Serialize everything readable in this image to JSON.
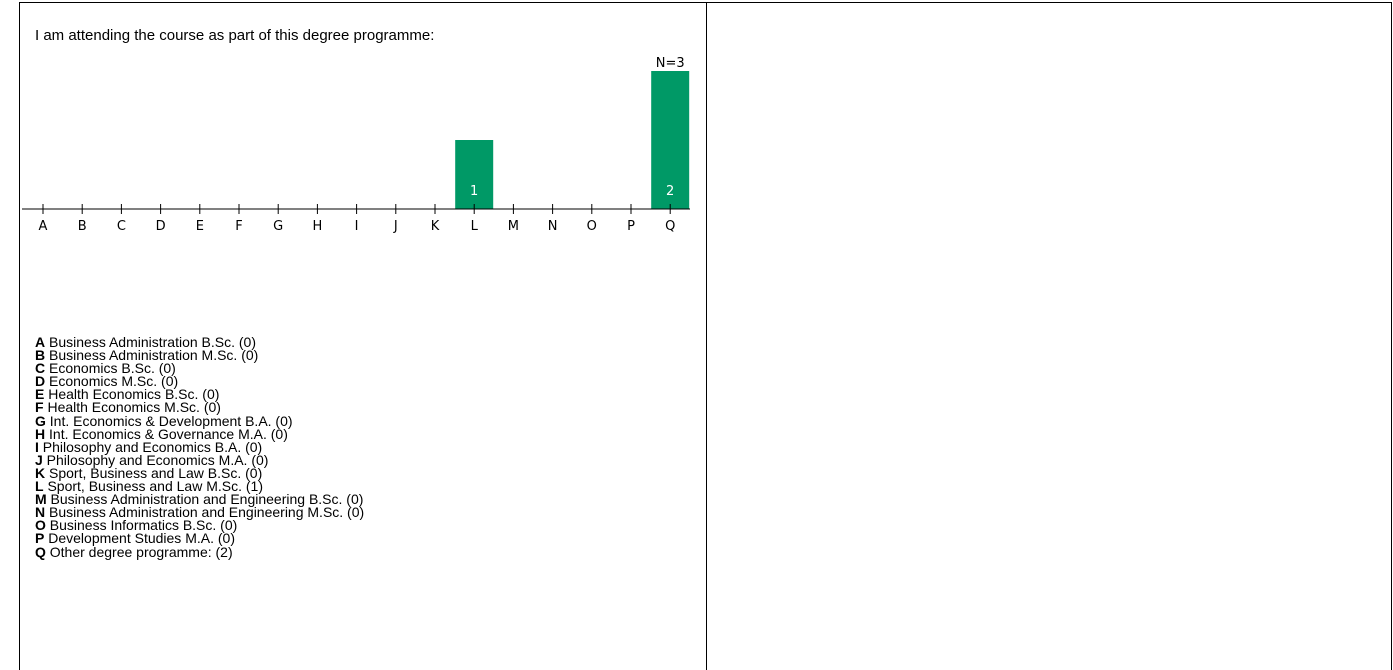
{
  "question": "I am attending the course as part of this degree programme:",
  "colors": {
    "bar": "#009966",
    "bar_label": "#ffffff",
    "axis": "#000000"
  },
  "chart_data": {
    "type": "bar",
    "categories": [
      "A",
      "B",
      "C",
      "D",
      "E",
      "F",
      "G",
      "H",
      "I",
      "J",
      "K",
      "L",
      "M",
      "N",
      "O",
      "P",
      "Q"
    ],
    "values": [
      0,
      0,
      0,
      0,
      0,
      0,
      0,
      0,
      0,
      0,
      0,
      1,
      0,
      0,
      0,
      0,
      2
    ],
    "n_label": "N=3",
    "title": "",
    "xlabel": "",
    "ylabel": "",
    "ylim": [
      0,
      2
    ],
    "grid": false
  },
  "legend": [
    {
      "key": "A",
      "text": "Business Administration B.Sc. (0)"
    },
    {
      "key": "B",
      "text": "Business Administration M.Sc. (0)"
    },
    {
      "key": "C",
      "text": "Economics B.Sc. (0)"
    },
    {
      "key": "D",
      "text": "Economics M.Sc. (0)"
    },
    {
      "key": "E",
      "text": "Health Economics B.Sc. (0)"
    },
    {
      "key": "F",
      "text": "Health Economics M.Sc. (0)"
    },
    {
      "key": "G",
      "text": "Int. Economics & Development B.A. (0)"
    },
    {
      "key": "H",
      "text": "Int. Economics & Governance M.A. (0)"
    },
    {
      "key": "I",
      "text": "Philosophy and Economics B.A. (0)"
    },
    {
      "key": "J",
      "text": "Philosophy and Economics M.A. (0)"
    },
    {
      "key": "K",
      "text": "Sport, Business and Law B.Sc. (0)"
    },
    {
      "key": "L",
      "text": "Sport, Business and Law M.Sc. (1)"
    },
    {
      "key": "M",
      "text": "Business Administration and Engineering B.Sc. (0)"
    },
    {
      "key": "N",
      "text": "Business Administration and Engineering M.Sc. (0)"
    },
    {
      "key": "O",
      "text": "Business Informatics B.Sc. (0)"
    },
    {
      "key": "P",
      "text": "Development Studies M.A. (0)"
    },
    {
      "key": "Q",
      "text": "Other degree programme: (2)"
    }
  ]
}
